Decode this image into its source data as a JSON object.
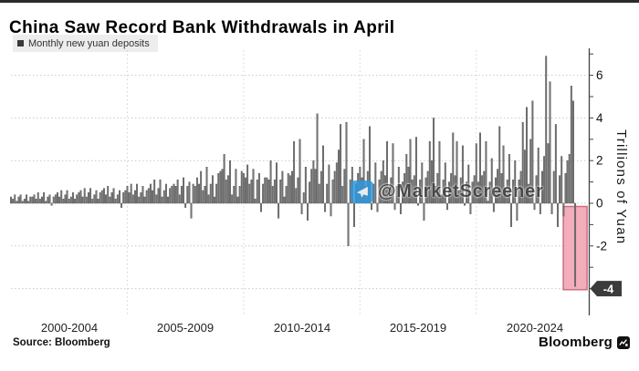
{
  "title": "China Saw Record Bank Withdrawals in April",
  "legend": {
    "label": "Monthly new yuan deposits",
    "marker_color": "#3a3a3a"
  },
  "watermark": {
    "text": "@MarketScreener",
    "icon_color": "#2f97dc"
  },
  "footer": {
    "source": "Source:  Bloomberg",
    "brand": "Bloomberg"
  },
  "colors": {
    "bar_fill": "#777777",
    "bar_stroke": "#4c4c4c",
    "highlight_fill": "#f3aab7",
    "highlight_stroke": "#c96f80",
    "grid": "#c9c9c9",
    "axis": "#444444",
    "badge_bg": "#3b3b3b",
    "badge_text": "#ffffff"
  },
  "chart_data": {
    "type": "bar",
    "title": "China Saw Record Bank Withdrawals in April",
    "series_name": "Monthly new yuan deposits",
    "unit": "trillion yuan",
    "ylabel": "Trillions of Yuan",
    "x_start": "2000-01",
    "x_end": "2024-04",
    "x_tick_labels": [
      "2000-2004",
      "2005-2009",
      "2010-2014",
      "2015-2019",
      "2020-2024"
    ],
    "y_ticks": [
      6,
      4,
      2,
      0,
      -2,
      -4
    ],
    "ylim": [
      -4.6,
      7.4
    ],
    "grid": "dotted",
    "legend_position": "top-left",
    "badge": {
      "value": -4,
      "label": "-4"
    },
    "highlight": {
      "month": "2024-04",
      "value": -3.9
    },
    "values": [
      0.3,
      0.2,
      0.4,
      0.1,
      0.3,
      0.4,
      0.1,
      0.2,
      0.4,
      0.1,
      0.3,
      0.3,
      0.4,
      0.2,
      0.5,
      0.2,
      0.3,
      0.5,
      0.1,
      0.3,
      0.4,
      -0.1,
      0.3,
      0.4,
      0.5,
      0.3,
      0.6,
      0.2,
      0.4,
      0.6,
      0.2,
      0.3,
      0.5,
      0.2,
      0.4,
      0.5,
      0.6,
      0.3,
      0.7,
      0.3,
      0.5,
      0.7,
      0.2,
      0.4,
      0.6,
      0.2,
      0.5,
      0.6,
      0.7,
      0.4,
      0.8,
      0.3,
      0.5,
      0.7,
      0.2,
      0.4,
      0.6,
      -0.2,
      0.5,
      0.6,
      0.8,
      0.5,
      0.9,
      0.4,
      0.6,
      0.9,
      0.3,
      0.5,
      0.8,
      0.3,
      0.6,
      0.7,
      0.9,
      0.6,
      1.1,
      0.4,
      0.7,
      1.1,
      0.3,
      0.6,
      0.9,
      0.3,
      0.7,
      0.8,
      0.9,
      0.8,
      1.1,
      0.4,
      0.8,
      1.2,
      -0.2,
      0.8,
      1.0,
      -0.7,
      0.9,
      0.8,
      1.2,
      0.9,
      1.5,
      0.6,
      0.8,
      1.7,
      0.4,
      0.9,
      1.3,
      0.3,
      0.9,
      1.4,
      1.5,
      1.6,
      2.3,
      1.1,
      1.3,
      2.0,
      0.4,
      0.8,
      1.6,
      0.3,
      0.8,
      1.5,
      1.4,
      1.2,
      1.8,
      0.9,
      1.1,
      1.6,
      0.2,
      1.1,
      1.4,
      -0.4,
      0.9,
      1.2,
      1.2,
      1.1,
      2.0,
      0.8,
      1.1,
      1.9,
      -0.7,
      1.1,
      1.5,
      0.3,
      0.8,
      1.4,
      1.3,
      1.5,
      2.9,
      0.7,
      1.2,
      3.0,
      -0.5,
      0.5,
      1.7,
      -0.8,
      1.0,
      1.6,
      2.0,
      1.6,
      4.2,
      0.9,
      1.5,
      2.7,
      -0.4,
      0.9,
      1.8,
      -0.6,
      1.1,
      1.5,
      1.9,
      2.5,
      3.7,
      0.8,
      1.6,
      3.8,
      -2.0,
      1.1,
      1.7,
      -1.1,
      0.9,
      1.4,
      1.7,
      1.2,
      3.0,
      0.8,
      1.5,
      3.6,
      -0.3,
      0.9,
      1.9,
      -0.4,
      1.1,
      1.5,
      2.0,
      1.3,
      2.9,
      0.8,
      1.2,
      2.8,
      -0.3,
      0.8,
      1.7,
      -0.5,
      1.0,
      1.4,
      2.3,
      1.7,
      3.0,
      1.1,
      1.3,
      3.1,
      -0.1,
      1.1,
      1.9,
      -0.8,
      1.2,
      1.5,
      2.9,
      2.0,
      4.0,
      0.8,
      1.4,
      2.9,
      0.4,
      1.1,
      1.9,
      -0.3,
      1.0,
      1.4,
      3.3,
      1.3,
      2.9,
      0.6,
      1.2,
      2.7,
      -0.1,
      1.0,
      1.8,
      -0.5,
      1.0,
      1.3,
      2.8,
      1.0,
      3.3,
      1.3,
      1.5,
      2.9,
      0.1,
      1.0,
      2.1,
      -0.4,
      1.2,
      1.6,
      3.6,
      1.4,
      2.7,
      0.7,
      1.1,
      2.3,
      -1.1,
      1.1,
      2.0,
      -0.8,
      1.1,
      1.5,
      3.8,
      2.5,
      4.5,
      0.9,
      3.0,
      4.8,
      -0.3,
      1.3,
      2.6,
      -0.5,
      1.5,
      2.2,
      6.9,
      2.8,
      5.7,
      -0.5,
      1.5,
      3.7,
      -1.1,
      1.3,
      2.2,
      -0.6,
      1.4,
      2.0,
      2.3,
      5.5,
      4.8,
      -3.9
    ]
  }
}
